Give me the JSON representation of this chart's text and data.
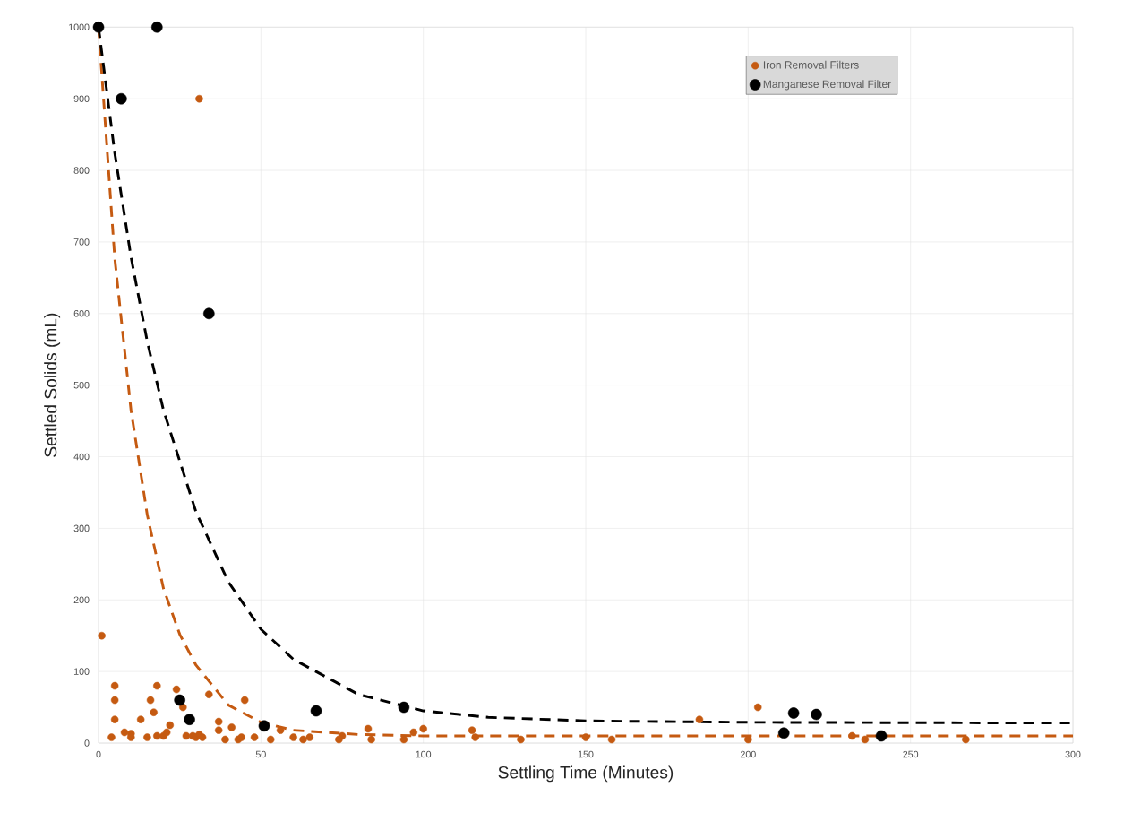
{
  "chart_data": {
    "type": "scatter",
    "xlabel": "Settling Time (Minutes)",
    "ylabel": "Settled Solids (mL)",
    "xlim": [
      0,
      300
    ],
    "xticks": [
      0,
      50,
      100,
      150,
      200,
      250,
      300
    ],
    "ylim": [
      0,
      1000
    ],
    "yticks": [
      0,
      100,
      200,
      300,
      400,
      500,
      600,
      700,
      800,
      900,
      1000
    ],
    "grid": true,
    "legend": "top right",
    "marker": "circle",
    "series": [
      {
        "name": "Iron Removal Filters",
        "color": "#c55a11",
        "x": [
          1,
          5,
          5,
          5,
          4,
          8,
          10,
          10,
          13,
          16,
          17,
          15,
          18,
          18,
          20,
          21,
          22,
          24,
          26,
          27,
          29,
          30,
          31,
          32,
          34,
          31,
          37,
          37,
          39,
          41,
          43,
          45,
          44,
          48,
          52,
          53,
          56,
          60,
          63,
          65,
          74,
          75,
          83,
          84,
          94,
          97,
          100,
          115,
          116,
          130,
          150,
          158,
          185,
          200,
          203,
          232,
          236,
          267
        ],
        "values": [
          150,
          80,
          60,
          33,
          8,
          15,
          13,
          8,
          33,
          60,
          43,
          8,
          80,
          10,
          10,
          15,
          25,
          75,
          50,
          10,
          10,
          8,
          12,
          8,
          68,
          900,
          30,
          18,
          5,
          22,
          5,
          60,
          8,
          8,
          null,
          5,
          18,
          8,
          5,
          8,
          5,
          10,
          20,
          5,
          5,
          15,
          20,
          18,
          8,
          5,
          8,
          5,
          33,
          5,
          50,
          10,
          5,
          5
        ]
      },
      {
        "name": "Manganese Removal Filter",
        "color": "#000000",
        "x": [
          0,
          7,
          18,
          34,
          25,
          28,
          51,
          67,
          94,
          211,
          214,
          221,
          241
        ],
        "values": [
          1000,
          900,
          1000,
          600,
          60,
          33,
          24,
          45,
          50,
          14,
          42,
          40,
          10
        ]
      },
      {
        "type": "line",
        "line_style": "dashed",
        "marker": "none",
        "color": "#c55a11",
        "x": [
          0,
          5,
          10,
          15,
          20,
          25,
          30,
          40,
          50,
          60,
          80,
          100,
          300
        ],
        "values": [
          1000,
          677,
          465,
          319,
          216,
          152,
          109,
          53,
          29,
          18,
          12,
          10,
          10
        ]
      },
      {
        "type": "line",
        "line_style": "dashed",
        "marker": "none",
        "color": "#000000",
        "x": [
          0,
          5,
          10,
          15,
          20,
          30,
          40,
          50,
          60,
          80,
          100,
          120,
          150,
          200,
          300
        ],
        "values": [
          1000,
          824,
          679,
          561,
          465,
          323,
          225,
          159,
          117,
          68,
          45,
          36,
          31,
          29,
          28
        ]
      }
    ]
  }
}
